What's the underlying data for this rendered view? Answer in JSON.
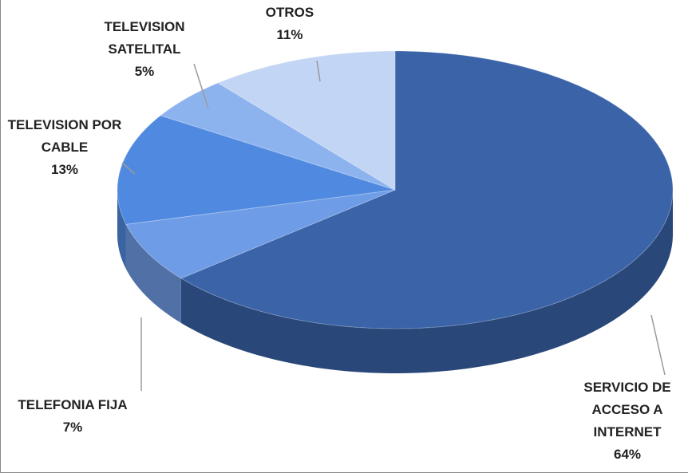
{
  "chart_data": {
    "type": "pie3d",
    "categories": [
      "SERVICIO DE ACCESO A INTERNET",
      "TELEFONIA FIJA",
      "TELEVISION POR CABLE",
      "TELEVISION SATELITAL",
      "OTROS"
    ],
    "values": [
      64,
      7,
      13,
      5,
      11
    ],
    "value_labels": [
      "64%",
      "7%",
      "13%",
      "5%",
      "11%"
    ],
    "colors": [
      "#3a63a8",
      "#6f9ce6",
      "#4f8ae0",
      "#8db3ef",
      "#c3d5f4"
    ]
  }
}
